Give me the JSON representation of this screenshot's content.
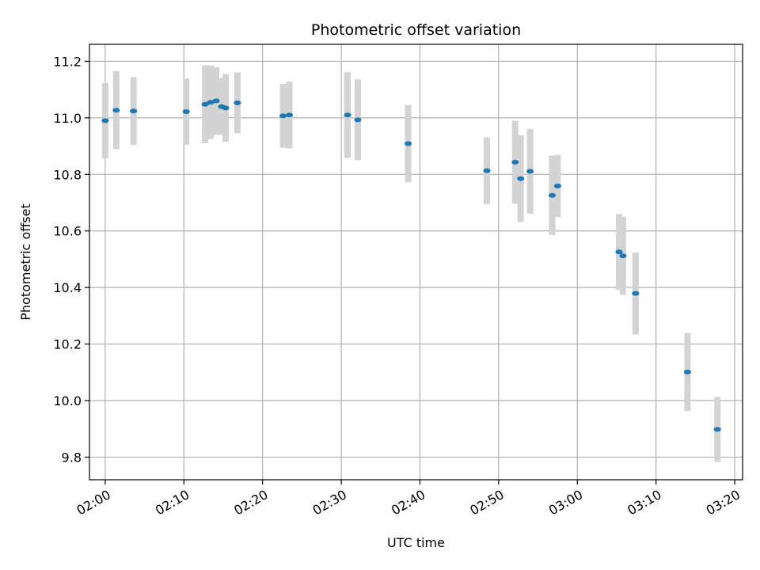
{
  "chart_data": {
    "type": "scatter",
    "title": "Photometric offset variation",
    "xlabel": "UTC time",
    "ylabel": "Photometric offset",
    "xlim": [
      "01:58",
      "03:21"
    ],
    "ylim": [
      9.72,
      11.26
    ],
    "x_ticks": [
      "02:00",
      "02:10",
      "02:20",
      "02:30",
      "02:40",
      "02:50",
      "03:00",
      "03:10",
      "03:20"
    ],
    "y_ticks": [
      9.8,
      10.0,
      10.2,
      10.4,
      10.6,
      10.8,
      11.0,
      11.2
    ],
    "y_tick_labels": [
      "9.8",
      "10.0",
      "10.2",
      "10.4",
      "10.6",
      "10.8",
      "11.0",
      "11.2"
    ],
    "grid": true,
    "colors": {
      "marker": "#1f77b4",
      "errorbar": "#d3d3d3",
      "grid": "#b0b0b0"
    },
    "points": [
      {
        "time": "02:00:00",
        "y": 10.99,
        "yerr": 0.133
      },
      {
        "time": "02:01:24",
        "y": 11.027,
        "yerr": 0.138
      },
      {
        "time": "02:03:36",
        "y": 11.024,
        "yerr": 0.12
      },
      {
        "time": "02:10:18",
        "y": 11.022,
        "yerr": 0.117
      },
      {
        "time": "02:12:42",
        "y": 11.048,
        "yerr": 0.138
      },
      {
        "time": "02:13:24",
        "y": 11.055,
        "yerr": 0.13
      },
      {
        "time": "02:14:06",
        "y": 11.06,
        "yerr": 0.12
      },
      {
        "time": "02:14:48",
        "y": 11.04,
        "yerr": 0.1
      },
      {
        "time": "02:15:18",
        "y": 11.035,
        "yerr": 0.12
      },
      {
        "time": "02:16:48",
        "y": 11.053,
        "yerr": 0.108
      },
      {
        "time": "02:22:36",
        "y": 11.007,
        "yerr": 0.113
      },
      {
        "time": "02:23:24",
        "y": 11.01,
        "yerr": 0.118
      },
      {
        "time": "02:30:48",
        "y": 11.01,
        "yerr": 0.152
      },
      {
        "time": "02:32:06",
        "y": 10.993,
        "yerr": 0.143
      },
      {
        "time": "02:38:30",
        "y": 10.909,
        "yerr": 0.137
      },
      {
        "time": "02:48:30",
        "y": 10.813,
        "yerr": 0.118
      },
      {
        "time": "02:52:06",
        "y": 10.843,
        "yerr": 0.147
      },
      {
        "time": "02:52:48",
        "y": 10.785,
        "yerr": 0.153
      },
      {
        "time": "02:54:00",
        "y": 10.811,
        "yerr": 0.15
      },
      {
        "time": "02:56:48",
        "y": 10.726,
        "yerr": 0.14
      },
      {
        "time": "02:57:30",
        "y": 10.759,
        "yerr": 0.11
      },
      {
        "time": "03:05:18",
        "y": 10.526,
        "yerr": 0.134
      },
      {
        "time": "03:05:48",
        "y": 10.512,
        "yerr": 0.138
      },
      {
        "time": "03:07:24",
        "y": 10.379,
        "yerr": 0.145
      },
      {
        "time": "03:14:00",
        "y": 10.101,
        "yerr": 0.138
      },
      {
        "time": "03:17:48",
        "y": 9.898,
        "yerr": 0.115
      }
    ]
  }
}
